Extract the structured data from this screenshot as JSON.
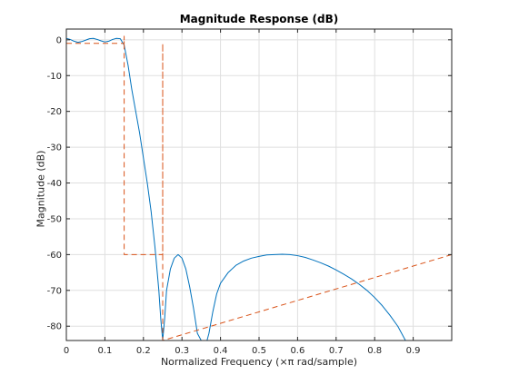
{
  "chart_data": {
    "type": "line",
    "title": "Magnitude Response (dB)",
    "xlabel": "Normalized Frequency (×π rad/sample)",
    "ylabel": "Magnitude (dB)",
    "xlim": [
      0,
      1
    ],
    "ylim": [
      -84,
      3
    ],
    "xticks": [
      0,
      0.1,
      0.2,
      0.3,
      0.4,
      0.5,
      0.6,
      0.7,
      0.8,
      0.9
    ],
    "xtick_labels": [
      "0",
      "0.1",
      "0.2",
      "0.3",
      "0.4",
      "0.5",
      "0.6",
      "0.7",
      "0.8",
      "0.9"
    ],
    "yticks": [
      0,
      -10,
      -20,
      -30,
      -40,
      -50,
      -60,
      -70,
      -80
    ],
    "ytick_labels": [
      "0",
      "-10",
      "-20",
      "-30",
      "-40",
      "-50",
      "-60",
      "-70",
      "-80"
    ],
    "grid": true,
    "series": [
      {
        "color": "#0072BD",
        "x": [
          0,
          0.01,
          0.02,
          0.03,
          0.04,
          0.05,
          0.06,
          0.07,
          0.08,
          0.09,
          0.1,
          0.11,
          0.12,
          0.13,
          0.14,
          0.15,
          0.16,
          0.17,
          0.18,
          0.19,
          0.2,
          0.21,
          0.22,
          0.23,
          0.24,
          0.245,
          0.25,
          0.255,
          0.26,
          0.27,
          0.28,
          0.29,
          0.3,
          0.31,
          0.32,
          0.33,
          0.34,
          0.35,
          0.355,
          0.36,
          0.365,
          0.37,
          0.38,
          0.39,
          0.4,
          0.42,
          0.44,
          0.46,
          0.48,
          0.5,
          0.52,
          0.54,
          0.56,
          0.58,
          0.6,
          0.62,
          0.64,
          0.66,
          0.68,
          0.7,
          0.72,
          0.74,
          0.76,
          0.78,
          0.8,
          0.82,
          0.84,
          0.86,
          0.88,
          0.9,
          0.92,
          0.94,
          0.95,
          0.96,
          0.97,
          0.98
        ],
        "y": [
          0.4,
          0.1,
          -0.4,
          -0.7,
          -0.5,
          -0.1,
          0.3,
          0.4,
          0.1,
          -0.3,
          -0.6,
          -0.4,
          0.1,
          0.4,
          0.3,
          -1.5,
          -7,
          -14,
          -20,
          -26,
          -33,
          -40,
          -48,
          -58,
          -70,
          -78,
          -84,
          -78,
          -70,
          -64,
          -61,
          -60,
          -61,
          -64,
          -69,
          -75,
          -82,
          -84,
          -84,
          -84,
          -84,
          -82,
          -76,
          -71,
          -68,
          -65,
          -63,
          -61.8,
          -61,
          -60.5,
          -60.1,
          -60,
          -59.9,
          -60,
          -60.3,
          -60.8,
          -61.5,
          -62.3,
          -63.2,
          -64.3,
          -65.5,
          -66.8,
          -68.3,
          -70,
          -72,
          -74.3,
          -77,
          -80,
          -84,
          -84,
          -84,
          -84,
          -84,
          -84,
          -84,
          -84
        ]
      },
      {
        "color": "#D95319",
        "style": "dashed",
        "x": [
          0,
          0.15,
          0.15,
          0.15,
          0.25,
          0.25,
          0.25,
          1
        ],
        "y": [
          -1,
          -1,
          1,
          -60,
          -60,
          -1,
          -84,
          -60
        ]
      }
    ]
  }
}
